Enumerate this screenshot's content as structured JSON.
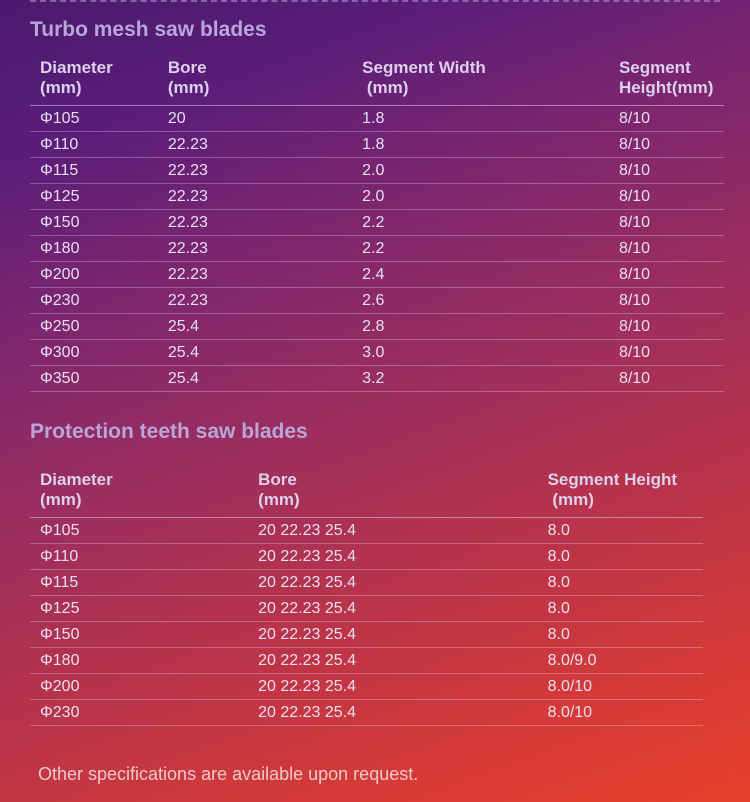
{
  "section1": {
    "title": "Turbo mesh saw blades",
    "columns": [
      "Diameter (mm)",
      "Bore (mm)",
      "Segment Width  (mm)",
      "Segment Height(mm)"
    ],
    "rows": [
      [
        "Φ105",
        "20",
        "1.8",
        "8/10"
      ],
      [
        "Φ110",
        "22.23",
        "1.8",
        "8/10"
      ],
      [
        "Φ115",
        "22.23",
        "2.0",
        "8/10"
      ],
      [
        "Φ125",
        "22.23",
        "2.0",
        "8/10"
      ],
      [
        "Φ150",
        "22.23",
        "2.2",
        "8/10"
      ],
      [
        "Φ180",
        "22.23",
        "2.2",
        "8/10"
      ],
      [
        "Φ200",
        "22.23",
        "2.4",
        "8/10"
      ],
      [
        "Φ230",
        "22.23",
        "2.6",
        "8/10"
      ],
      [
        "Φ250",
        "25.4",
        "2.8",
        "8/10"
      ],
      [
        "Φ300",
        "25.4",
        "3.0",
        "8/10"
      ],
      [
        "Φ350",
        "25.4",
        "3.2",
        "8/10"
      ]
    ]
  },
  "section2": {
    "title": "Protection teeth saw blades",
    "columns": [
      "Diameter (mm)",
      "Bore (mm)",
      "Segment Height  (mm)"
    ],
    "rows": [
      [
        "Φ105",
        "20 22.23 25.4",
        "8.0"
      ],
      [
        "Φ110",
        "20 22.23 25.4",
        "8.0"
      ],
      [
        "Φ115",
        "20 22.23 25.4",
        "8.0"
      ],
      [
        "Φ125",
        "20 22.23 25.4",
        "8.0"
      ],
      [
        "Φ150",
        "20 22.23 25.4",
        "8.0"
      ],
      [
        "Φ180",
        "20 22.23 25.4",
        "8.0/9.0"
      ],
      [
        "Φ200",
        "20 22.23 25.4",
        "8.0/10"
      ],
      [
        "Φ230",
        "20 22.23 25.4",
        "8.0/10"
      ]
    ]
  },
  "footer": "Other specifications are available upon request."
}
